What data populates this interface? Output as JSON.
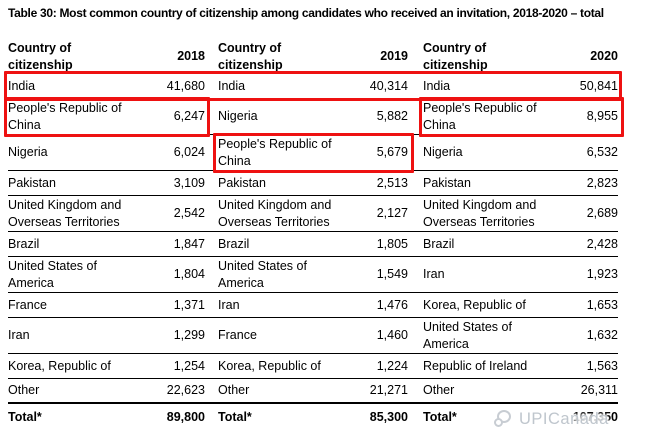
{
  "title": "Table 30: Most common country of citizenship among candidates who received an invitation, 2018-2020 – total",
  "header": {
    "country_label": "Country of citizenship",
    "years": [
      "2018",
      "2019",
      "2020"
    ]
  },
  "table": {
    "rows": [
      [
        {
          "country": "India",
          "value": "41,680"
        },
        {
          "country": "India",
          "value": "40,314"
        },
        {
          "country": "India",
          "value": "50,841"
        }
      ],
      [
        {
          "country": "People's Republic of China",
          "value": "6,247"
        },
        {
          "country": "Nigeria",
          "value": "5,882"
        },
        {
          "country": "People's Republic of China",
          "value": "8,955"
        }
      ],
      [
        {
          "country": "Nigeria",
          "value": "6,024"
        },
        {
          "country": "People's Republic of China",
          "value": "5,679"
        },
        {
          "country": "Nigeria",
          "value": "6,532"
        }
      ],
      [
        {
          "country": "Pakistan",
          "value": "3,109"
        },
        {
          "country": "Pakistan",
          "value": "2,513"
        },
        {
          "country": "Pakistan",
          "value": "2,823"
        }
      ],
      [
        {
          "country": "United Kingdom and Overseas Territories",
          "value": "2,542"
        },
        {
          "country": "United Kingdom and Overseas Territories",
          "value": "2,127"
        },
        {
          "country": "United Kingdom and Overseas Territories",
          "value": "2,689"
        }
      ],
      [
        {
          "country": "Brazil",
          "value": "1,847"
        },
        {
          "country": "Brazil",
          "value": "1,805"
        },
        {
          "country": "Brazil",
          "value": "2,428"
        }
      ],
      [
        {
          "country": "United States of America",
          "value": "1,804"
        },
        {
          "country": "United States of America",
          "value": "1,549"
        },
        {
          "country": "Iran",
          "value": "1,923"
        }
      ],
      [
        {
          "country": "France",
          "value": "1,371"
        },
        {
          "country": "Iran",
          "value": "1,476"
        },
        {
          "country": "Korea, Republic of",
          "value": "1,653"
        }
      ],
      [
        {
          "country": "Iran",
          "value": "1,299"
        },
        {
          "country": "France",
          "value": "1,460"
        },
        {
          "country": "United States of America",
          "value": "1,632"
        }
      ],
      [
        {
          "country": "Korea, Republic of",
          "value": "1,254"
        },
        {
          "country": "Korea, Republic of",
          "value": "1,224"
        },
        {
          "country": "Republic of Ireland",
          "value": "1,563"
        }
      ],
      [
        {
          "country": "Other",
          "value": "22,623"
        },
        {
          "country": "Other",
          "value": "21,271"
        },
        {
          "country": "Other",
          "value": "26,311"
        }
      ],
      [
        {
          "country": "Total*",
          "value": "89,800"
        },
        {
          "country": "Total*",
          "value": "85,300"
        },
        {
          "country": "Total*",
          "value": "107,350"
        }
      ]
    ]
  },
  "highlights": [
    "India row 2018–2020",
    "People's Republic of China 2018",
    "People's Republic of China 2020",
    "People's Republic of China 2019"
  ],
  "watermark": {
    "text": "UPICanada",
    "icon": "chat-bubbles-logo-icon"
  },
  "colors": {
    "highlight_border": "#ee1111",
    "table_text": "#000000",
    "watermark_text": "#bfc6cd"
  }
}
